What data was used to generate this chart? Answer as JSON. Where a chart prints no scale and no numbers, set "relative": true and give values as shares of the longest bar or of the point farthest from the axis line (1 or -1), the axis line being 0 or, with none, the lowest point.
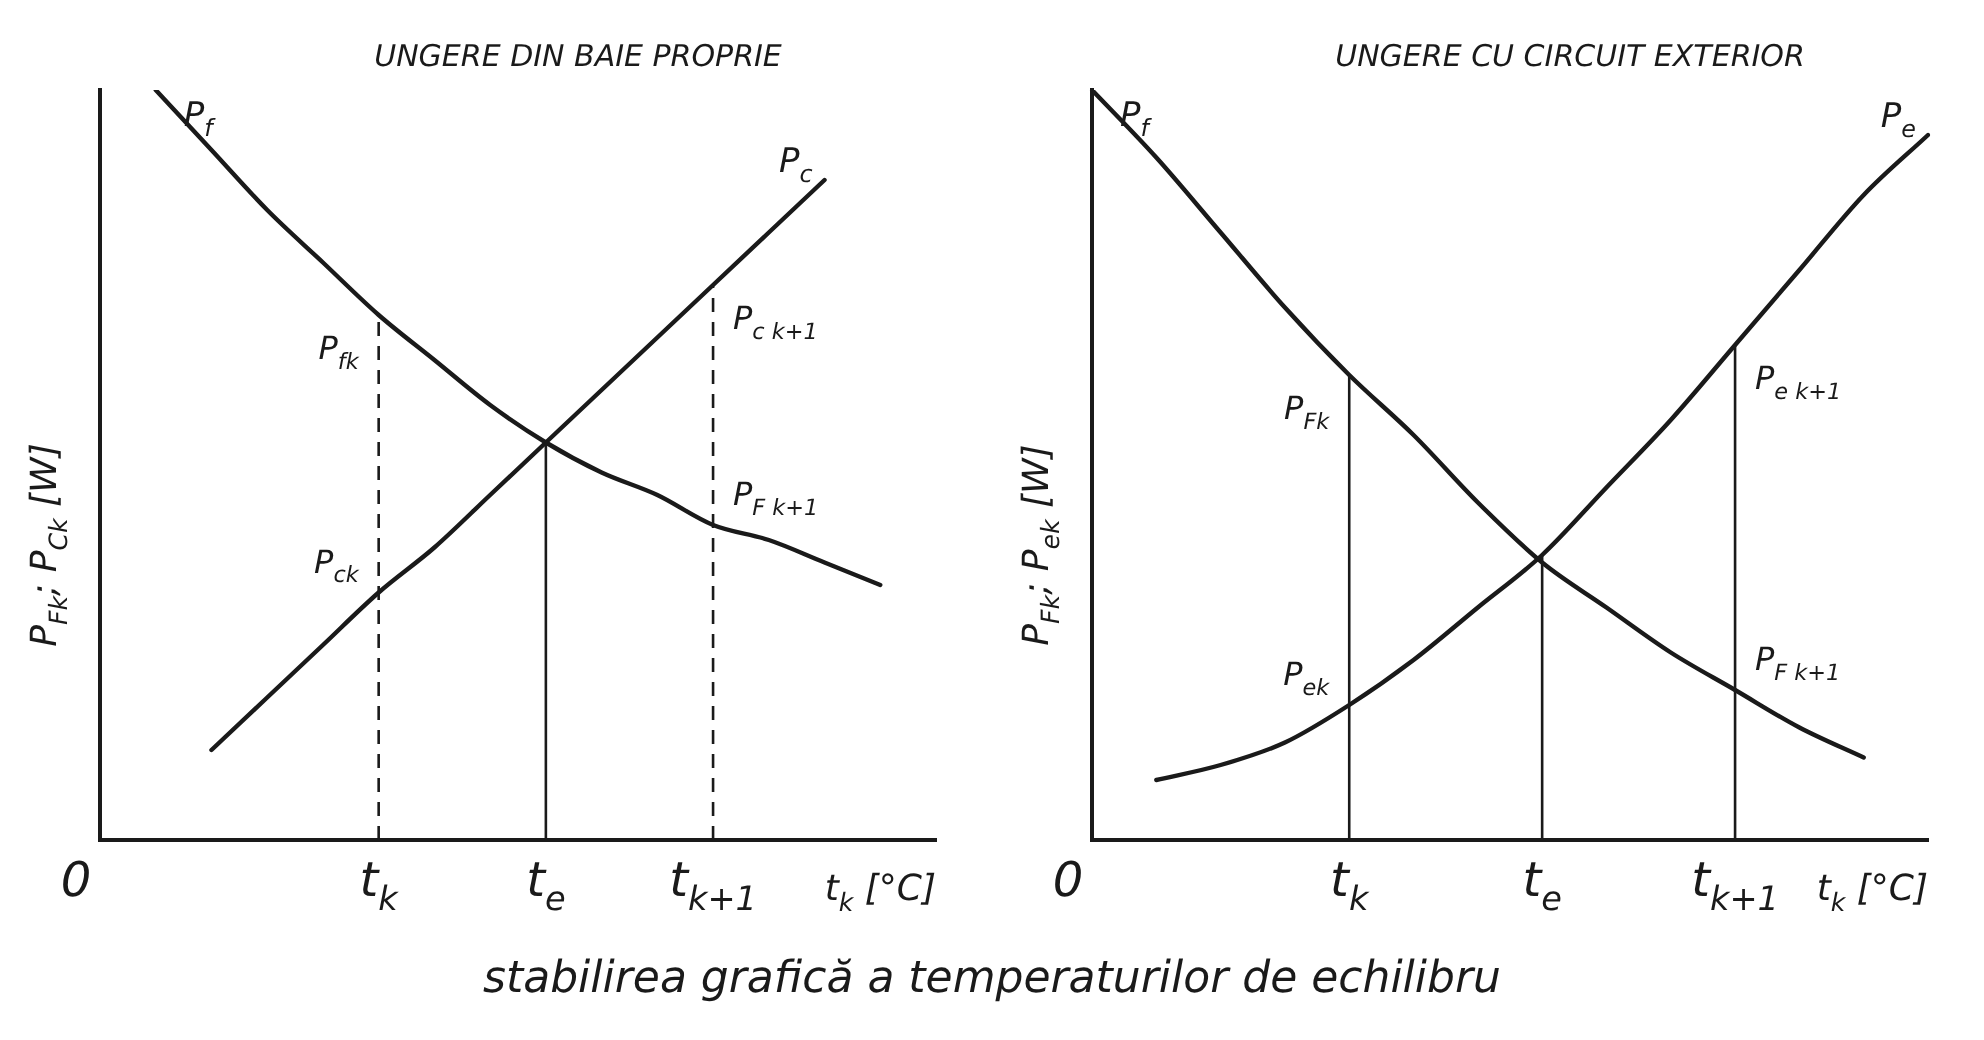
{
  "chart_data": [
    {
      "type": "line",
      "relative": true,
      "ylabel": "P$_{Fk}$; P$_{Ck}$ [W]",
      "xlabel": "t$_{k}$ [°C]",
      "categories": [
        "0",
        null,
        null,
        null,
        null,
        "t$_{k}$",
        null,
        null,
        "t$_{e}$",
        null,
        null,
        "t$_{k+1}$",
        null,
        null,
        null,
        null
      ],
      "series": [
        {
          "name": "P$_{f}$",
          "color": "#1a1a1a",
          "values": [
            null,
            1,
            0.92,
            0.84,
            0.77,
            0.7,
            0.64,
            0.58,
            0.53,
            0.49,
            0.46,
            0.42,
            0.4,
            0.37,
            0.34,
            null
          ]
        },
        {
          "name": "P$_{c}$",
          "color": "#1a1a1a",
          "values": [
            null,
            null,
            0.12,
            0.19,
            0.26,
            0.33,
            0.39,
            0.46,
            0.53,
            0.6,
            0.67,
            0.74,
            0.81,
            0.88,
            null,
            null
          ]
        }
      ],
      "ref_lines": [
        {
          "axis": "x",
          "value": "t$_{k}$",
          "line_style": "dashed"
        },
        {
          "axis": "x",
          "value": "t$_{e}$",
          "line_style": "solid"
        },
        {
          "axis": "x",
          "value": "t$_{k+1}$",
          "line_style": "dashed"
        }
      ],
      "annotations": [
        "UNGERE DIN BAIE PROPRIE",
        {
          "text": "P$_{fk}$",
          "x": "t$_{k}$",
          "y": 0.7
        },
        {
          "text": "P$_{ck}$",
          "x": "t$_{k}$",
          "y": 0.33
        },
        {
          "text": "P$_{c k+1}$",
          "x": "t$_{k+1}$",
          "y": 0.74
        },
        {
          "text": "P$_{F k+1}$",
          "x": "t$_{k+1}$",
          "y": 0.42
        }
      ],
      "grid": false,
      "legend": false,
      "marker": "none",
      "line_style": "solid"
    },
    {
      "type": "line",
      "relative": true,
      "ylabel": "P$_{Fk}$; P$_{ek}$ [W]",
      "xlabel": "t$_{k}$ [°C]",
      "categories": [
        "0",
        null,
        null,
        null,
        "t$_{k}$",
        null,
        null,
        "t$_{e}$",
        null,
        null,
        "t$_{k+1}$",
        null,
        null,
        null
      ],
      "series": [
        {
          "name": "P$_{f}$",
          "color": "#1a1a1a",
          "values": [
            1,
            0.91,
            0.81,
            0.71,
            0.62,
            0.54,
            0.45,
            0.37,
            0.31,
            0.25,
            0.2,
            0.15,
            0.11,
            null
          ]
        },
        {
          "name": "P$_{e}$",
          "color": "#1a1a1a",
          "values": [
            null,
            0.08,
            0.1,
            0.13,
            0.18,
            0.24,
            0.31,
            0.38,
            0.47,
            0.56,
            0.66,
            0.76,
            0.86,
            0.94
          ]
        }
      ],
      "ref_lines": [
        {
          "axis": "x",
          "value": "t$_{k}$",
          "line_style": "solid"
        },
        {
          "axis": "x",
          "value": "t$_{e}$",
          "line_style": "solid"
        },
        {
          "axis": "x",
          "value": "t$_{k+1}$",
          "line_style": "solid"
        }
      ],
      "annotations": [
        "UNGERE CU CIRCUIT EXTERIOR",
        {
          "text": "P$_{Fk}$",
          "x": "t$_{k}$",
          "y": 0.62
        },
        {
          "text": "P$_{ek}$",
          "x": "t$_{k}$",
          "y": 0.18
        },
        {
          "text": "P$_{e k+1}$",
          "x": "t$_{k+1}$",
          "y": 0.66
        },
        {
          "text": "P$_{F k+1}$",
          "x": "t$_{k+1}$",
          "y": 0.2
        },
        "stabilirea grafică a temperaturilor de echilibru"
      ],
      "grid": false,
      "legend": false,
      "marker": "none",
      "line_style": "solid"
    }
  ]
}
